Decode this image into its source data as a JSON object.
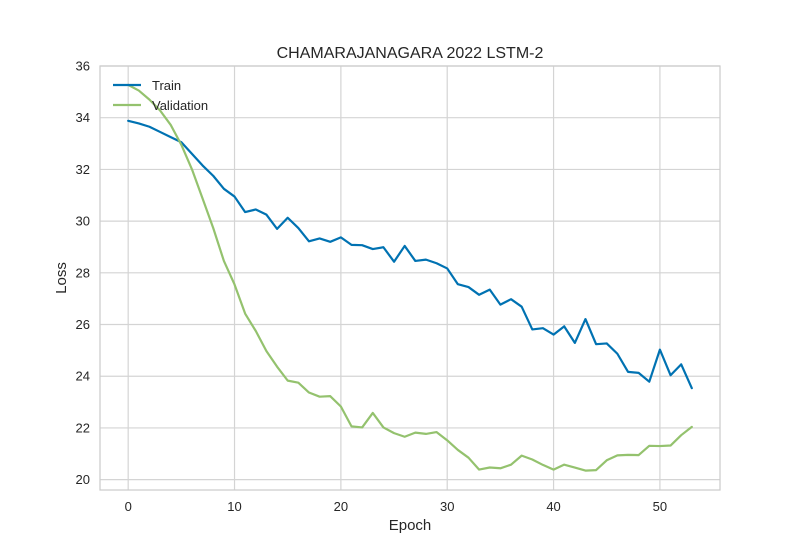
{
  "chart_data": {
    "type": "line",
    "title": "CHAMARAJANAGARA 2022 LSTM-2",
    "xlabel": "Epoch",
    "ylabel": "Loss",
    "xlim": [
      -2.65,
      55.65
    ],
    "ylim": [
      19.6,
      36
    ],
    "xticks": [
      0,
      10,
      20,
      30,
      40,
      50
    ],
    "yticks": [
      20,
      22,
      24,
      26,
      28,
      30,
      32,
      34,
      36
    ],
    "grid": true,
    "legend_position": "top-left",
    "series": [
      {
        "name": "Train",
        "color": "#0072B2",
        "x": [
          0,
          1,
          2,
          3,
          4,
          5,
          6,
          7,
          8,
          9,
          10,
          11,
          12,
          13,
          14,
          15,
          16,
          17,
          18,
          19,
          20,
          21,
          22,
          23,
          24,
          25,
          26,
          27,
          28,
          29,
          30,
          31,
          32,
          33,
          34,
          35,
          36,
          37,
          38,
          39,
          40,
          41,
          42,
          43,
          44,
          45,
          46,
          47,
          48,
          49,
          50,
          51,
          52,
          53
        ],
        "values": [
          33.88,
          33.78,
          33.65,
          33.45,
          33.25,
          33.05,
          32.6,
          32.15,
          31.75,
          31.25,
          30.95,
          30.35,
          30.45,
          30.25,
          29.7,
          30.13,
          29.73,
          29.22,
          29.33,
          29.2,
          29.37,
          29.08,
          29.07,
          28.92,
          28.99,
          28.43,
          29.04,
          28.46,
          28.51,
          28.37,
          28.17,
          27.56,
          27.45,
          27.15,
          27.35,
          26.77,
          26.98,
          26.69,
          25.81,
          25.86,
          25.61,
          25.93,
          25.29,
          26.21,
          25.24,
          25.27,
          24.87,
          24.17,
          24.13,
          23.79,
          25.03,
          24.04,
          24.46,
          23.54
        ]
      },
      {
        "name": "Validation",
        "color": "#94C26E",
        "x": [
          0,
          1,
          2,
          3,
          4,
          5,
          6,
          7,
          8,
          9,
          10,
          11,
          12,
          13,
          14,
          15,
          16,
          17,
          18,
          19,
          20,
          21,
          22,
          23,
          24,
          25,
          26,
          27,
          28,
          29,
          30,
          31,
          32,
          33,
          34,
          35,
          36,
          37,
          38,
          39,
          40,
          41,
          42,
          43,
          44,
          45,
          46,
          47,
          48,
          49,
          50,
          51,
          52,
          53
        ],
        "values": [
          35.27,
          35.05,
          34.7,
          34.28,
          33.72,
          32.95,
          32.0,
          30.87,
          29.73,
          28.46,
          27.55,
          26.42,
          25.75,
          24.97,
          24.37,
          23.83,
          23.75,
          23.37,
          23.21,
          23.23,
          22.83,
          22.06,
          22.02,
          22.58,
          22.02,
          21.8,
          21.66,
          21.82,
          21.77,
          21.84,
          21.52,
          21.15,
          20.85,
          20.39,
          20.47,
          20.44,
          20.58,
          20.93,
          20.78,
          20.57,
          20.39,
          20.58,
          20.47,
          20.35,
          20.37,
          20.75,
          20.94,
          20.96,
          20.95,
          21.31,
          21.3,
          21.32,
          21.72,
          22.04
        ]
      }
    ]
  }
}
